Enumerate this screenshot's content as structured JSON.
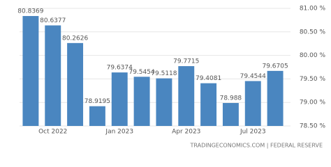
{
  "chart_data": {
    "type": "bar",
    "categories": [
      null,
      "Oct 2022",
      null,
      null,
      "Jan 2023",
      null,
      null,
      "Apr 2023",
      null,
      null,
      "Jul 2023",
      null
    ],
    "values": [
      80.8369,
      80.6377,
      80.2626,
      78.9195,
      79.6374,
      79.5454,
      79.5118,
      79.7715,
      79.4081,
      78.988,
      79.4544,
      79.6705
    ],
    "color": "#4a86c0",
    "ylim": [
      78.5,
      81.0
    ],
    "yticks": [
      {
        "value": 78.5,
        "label": "78.50 %"
      },
      {
        "value": 79.0,
        "label": "79.00 %"
      },
      {
        "value": 79.5,
        "label": "79.50 %"
      },
      {
        "value": 80.0,
        "label": "80.00 %"
      },
      {
        "value": 80.5,
        "label": "80.50 %"
      },
      {
        "value": 81.0,
        "label": "81.00 %"
      }
    ],
    "grid": true,
    "source": "TRADINGECONOMICS.COM | FEDERAL RESERVE"
  }
}
